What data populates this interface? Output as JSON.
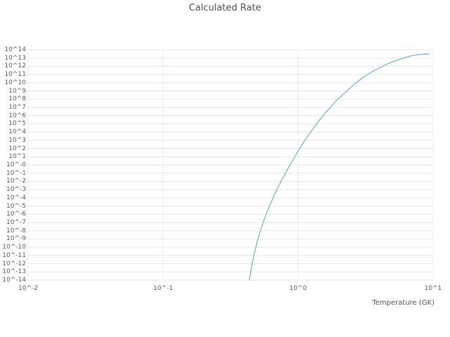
{
  "chart_data": {
    "type": "line",
    "title": "Calculated Rate",
    "xlabel": "Temperature (GK)",
    "ylabel": "",
    "x_scale": "log",
    "y_scale": "log",
    "xlim_log10": [
      -2,
      1
    ],
    "ylim_log10": [
      -14,
      14
    ],
    "grid": true,
    "legend": "none",
    "x_tick_labels": [
      "10^-2",
      "10^-1",
      "10^0",
      "10^1"
    ],
    "x_tick_log10": [
      -2,
      -1,
      0,
      1
    ],
    "y_tick_labels": [
      "10^14",
      "10^13",
      "10^12",
      "10^11",
      "10^10",
      "10^9",
      "10^8",
      "10^7",
      "10^6",
      "10^5",
      "10^4",
      "10^3",
      "10^2",
      "10^1",
      "10^-0",
      "10^-1",
      "10^-2",
      "10^-3",
      "10^-4",
      "10^-5",
      "10^-6",
      "10^-7",
      "10^-8",
      "10^-9",
      "10^-10",
      "10^-11",
      "10^-12",
      "10^-13",
      "10^-14"
    ],
    "y_tick_log10": [
      14,
      13,
      12,
      11,
      10,
      9,
      8,
      7,
      6,
      5,
      4,
      3,
      2,
      1,
      0,
      -1,
      -2,
      -3,
      -4,
      -5,
      -6,
      -7,
      -8,
      -9,
      -10,
      -11,
      -12,
      -13,
      -14
    ],
    "series": [
      {
        "name": "calculated-rate",
        "color": "#74add1",
        "T_GK": [
          0.435,
          0.45,
          0.47,
          0.5,
          0.53,
          0.57,
          0.62,
          0.67,
          0.72,
          0.78,
          0.85,
          0.93,
          1.0,
          1.1,
          1.25,
          1.4,
          1.6,
          1.8,
          2.0,
          2.3,
          2.6,
          3.0,
          3.5,
          4.0,
          4.6,
          5.3,
          6.0,
          7.0,
          8.0,
          8.8,
          9.3
        ],
        "log10_rate": [
          -14.0,
          -12.6,
          -11.0,
          -9.2,
          -7.8,
          -6.3,
          -4.8,
          -3.6,
          -2.5,
          -1.4,
          -0.3,
          0.8,
          1.7,
          2.8,
          4.1,
          5.2,
          6.4,
          7.3,
          8.1,
          9.0,
          9.8,
          10.6,
          11.3,
          11.8,
          12.3,
          12.7,
          13.0,
          13.3,
          13.45,
          13.5,
          13.48
        ]
      }
    ]
  },
  "colors": {
    "background": "#ffffff",
    "grid": "#e5e5e5",
    "grid_vertical": "#ececec",
    "line": "#74add1",
    "tick_text": "#595959",
    "title_text": "#4f4f4f"
  }
}
